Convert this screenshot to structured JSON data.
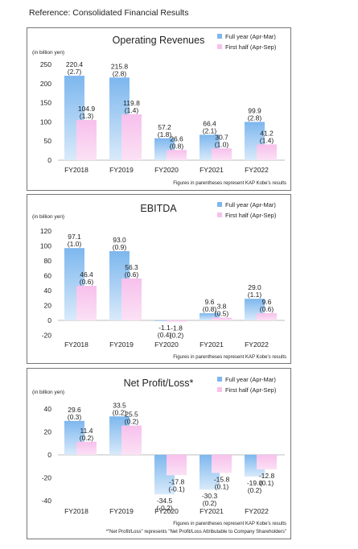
{
  "page": {
    "title": "Reference: Consolidated Financial Results"
  },
  "colors": {
    "full_year": "#7db7ee",
    "full_year_fade": "#d9eafa",
    "first_half": "#f7c0ec",
    "first_half_fade": "#fbe1f5",
    "axis": "#bdbdbd",
    "border": "#777777"
  },
  "chart_data": [
    {
      "type": "bar",
      "title": "Operating Revenues",
      "unit": "(in billion yen)",
      "categories": [
        "FY2018",
        "FY2019",
        "FY2020",
        "FY2021",
        "FY2022"
      ],
      "ylim": [
        0,
        250
      ],
      "yticks": [
        "250",
        "200",
        "150",
        "100",
        "50",
        "0"
      ],
      "series": [
        {
          "name": "Full year (Apr-Mar)",
          "values": [
            220.4,
            215.8,
            57.2,
            66.4,
            99.9
          ],
          "labels": [
            "220.4",
            "215.8",
            "57.2",
            "66.4",
            "99.9"
          ],
          "sub_labels": [
            "(2.7)",
            "(2.8)",
            "(1.8)",
            "(2.1)",
            "(2.8)"
          ]
        },
        {
          "name": "First half (Apr-Sep)",
          "values": [
            104.9,
            119.8,
            26.6,
            30.7,
            41.2
          ],
          "labels": [
            "104.9",
            "119.8",
            "26.6",
            "30.7",
            "41.2"
          ],
          "sub_labels": [
            "(1.3)",
            "(1.4)",
            "(0.8)",
            "(1.0)",
            "(1.4)"
          ]
        }
      ],
      "footnote": "Figures in parentheses represent KAP Kobe's results",
      "legend_position": "top-right",
      "grid": false
    },
    {
      "type": "bar",
      "title": "EBITDA",
      "unit": "(in billion yen)",
      "categories": [
        "FY2018",
        "FY2019",
        "FY2020",
        "FY2021",
        "FY2022"
      ],
      "ylim": [
        -20,
        120
      ],
      "yticks": [
        "120",
        "100",
        "80",
        "60",
        "40",
        "20",
        "0",
        "-20"
      ],
      "series": [
        {
          "name": "Full year (Apr-Mar)",
          "values": [
            97.1,
            93.0,
            -1.1,
            9.6,
            29.0
          ],
          "labels": [
            "97.1",
            "93.0",
            "-1.1",
            "9.6",
            "29.0"
          ],
          "sub_labels": [
            "(1.0)",
            "(0.9)",
            "(0.4)",
            "(0.8)",
            "(1.1)"
          ]
        },
        {
          "name": "First half (Apr-Sep)",
          "values": [
            46.4,
            56.3,
            -1.8,
            3.8,
            9.6
          ],
          "labels": [
            "46.4",
            "56.3",
            "-1.8",
            "3.8",
            "9.6"
          ],
          "sub_labels": [
            "(0.6)",
            "(0.6)",
            "(0.2)",
            "(0.5)",
            "(0.6)"
          ]
        }
      ],
      "footnote": "Figures in parentheses represent KAP Kobe's results",
      "legend_position": "top-right",
      "grid": false
    },
    {
      "type": "bar",
      "title": "Net Profit/Loss*",
      "unit": "(in billion yen)",
      "categories": [
        "FY2018",
        "FY2019",
        "FY2020",
        "FY2021",
        "FY2022"
      ],
      "ylim": [
        -40,
        40
      ],
      "yticks": [
        "40",
        "20",
        "0",
        "-20",
        "-40"
      ],
      "series": [
        {
          "name": "Full year (Apr-Mar)",
          "values": [
            29.6,
            33.5,
            -34.5,
            -30.3,
            -19.0
          ],
          "labels": [
            "29.6",
            "33.5",
            "-34.5",
            "-30.3",
            "-19.0"
          ],
          "sub_labels": [
            "(0.3)",
            "(0.2)",
            "(-0.2)",
            "(0.2)",
            "(0.2)"
          ]
        },
        {
          "name": "First half (Apr-Sep)",
          "values": [
            11.4,
            25.5,
            -17.8,
            -15.8,
            -12.8
          ],
          "labels": [
            "11.4",
            "25.5",
            "-17.8",
            "-15.8",
            "-12.8"
          ],
          "sub_labels": [
            "(0.2)",
            "(0.2)",
            "(-0.1)",
            "(0.1)",
            "(0.1)"
          ]
        }
      ],
      "footnote": "Figures in parentheses represent KAP Kobe's results",
      "footnote2": "*\"Net Profit/Loss\" represents \"Net Profit/Loss Attributable to Company Shareholders\"",
      "legend_position": "top-right",
      "grid": false
    }
  ]
}
